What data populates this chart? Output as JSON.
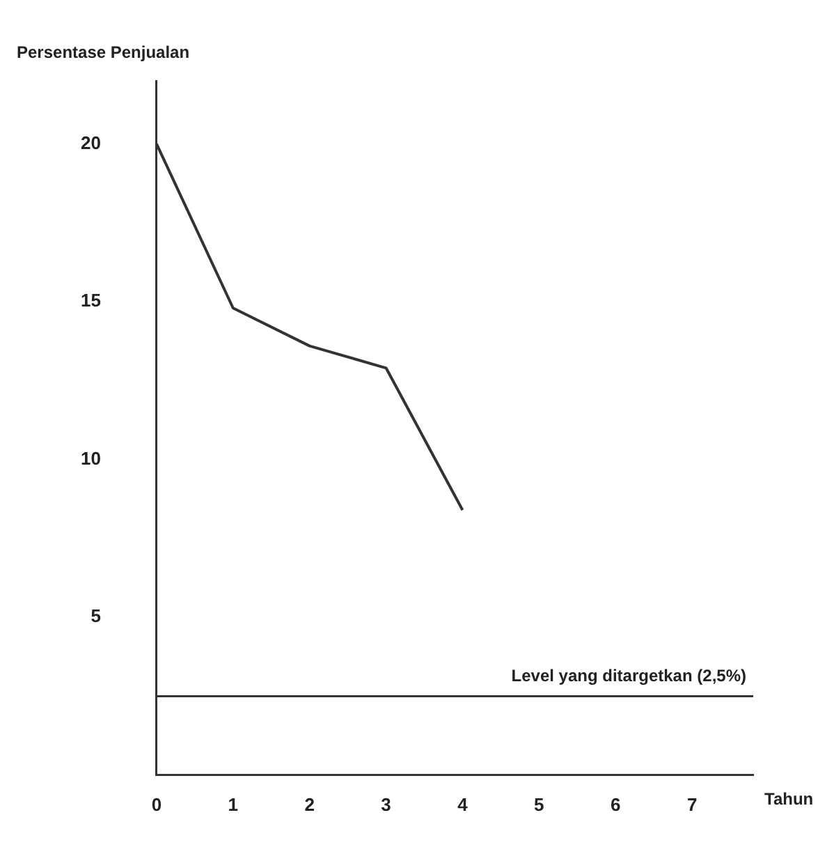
{
  "chart_data": {
    "type": "line",
    "ylabel": "Persentase Penjualan",
    "xlabel": "Tahun",
    "x": [
      0,
      1,
      2,
      3,
      4
    ],
    "series": [
      {
        "color": "#333333",
        "values": [
          20,
          14.8,
          13.6,
          12.9,
          8.4
        ]
      }
    ],
    "xlim": [
      0,
      7.8
    ],
    "xticks": [
      0,
      1,
      2,
      3,
      4,
      5,
      6,
      7
    ],
    "ylim": [
      0,
      22
    ],
    "yticks": [
      5,
      10,
      15,
      20
    ],
    "ref_lines": [
      {
        "axis": "y",
        "value": 2.5,
        "label": "Level yang ditargetkan (2,5%)",
        "color": "#333333"
      }
    ],
    "grid": false,
    "legend": false,
    "marker": "none",
    "line_style": "solid"
  }
}
